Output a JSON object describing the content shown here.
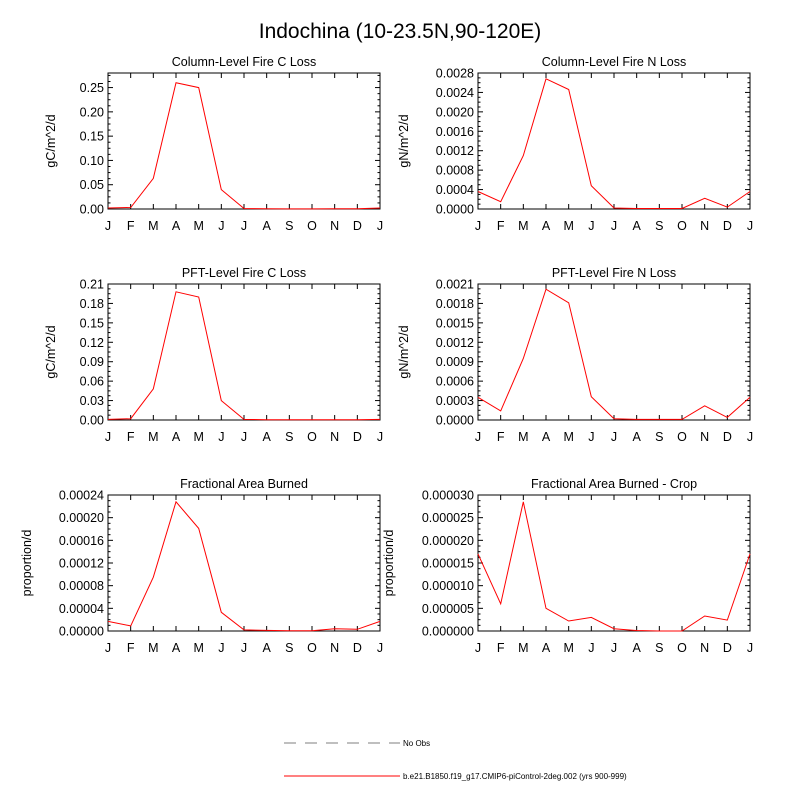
{
  "title": "Indochina (10-23.5N,90-120E)",
  "months": [
    "J",
    "F",
    "M",
    "A",
    "M",
    "J",
    "J",
    "A",
    "S",
    "O",
    "N",
    "D",
    "J"
  ],
  "chart_data": [
    {
      "type": "line",
      "title": "Column-Level Fire C Loss",
      "ylabel": "gC/m^2/d",
      "ylim": [
        0,
        0.28
      ],
      "yticks": [
        "0.00",
        "0.05",
        "0.10",
        "0.15",
        "0.20",
        "0.25"
      ],
      "ytick_values": [
        0,
        0.05,
        0.1,
        0.15,
        0.2,
        0.25
      ],
      "series": [
        {
          "values": [
            0.002,
            0.003,
            0.063,
            0.26,
            0.25,
            0.04,
            0.001,
            0.0005,
            0.0003,
            0.0003,
            0.0005,
            0.0005,
            0.002
          ]
        }
      ]
    },
    {
      "type": "line",
      "title": "Column-Level Fire N Loss",
      "ylabel": "gN/m^2/d",
      "ylim": [
        0,
        0.0028
      ],
      "yticks": [
        "0.0000",
        "0.0004",
        "0.0008",
        "0.0012",
        "0.0016",
        "0.0020",
        "0.0024",
        "0.0028"
      ],
      "ytick_values": [
        0,
        0.0004,
        0.0008,
        0.0012,
        0.0016,
        0.002,
        0.0024,
        0.0028
      ],
      "series": [
        {
          "values": [
            0.00036,
            0.00015,
            0.0011,
            0.00268,
            0.00246,
            0.00048,
            2e-05,
            1e-05,
            1e-05,
            1e-05,
            0.00022,
            4e-05,
            0.00036
          ]
        }
      ]
    },
    {
      "type": "line",
      "title": "PFT-Level Fire C Loss",
      "ylabel": "gC/m^2/d",
      "ylim": [
        0,
        0.21
      ],
      "yticks": [
        "0.00",
        "0.03",
        "0.06",
        "0.09",
        "0.12",
        "0.15",
        "0.18",
        "0.21"
      ],
      "ytick_values": [
        0,
        0.03,
        0.06,
        0.09,
        0.12,
        0.15,
        0.18,
        0.21
      ],
      "series": [
        {
          "values": [
            0.001,
            0.002,
            0.048,
            0.198,
            0.19,
            0.03,
            0.001,
            0.0005,
            0.0003,
            0.0003,
            0.0004,
            0.0004,
            0.001
          ]
        }
      ]
    },
    {
      "type": "line",
      "title": "PFT-Level Fire N Loss",
      "ylabel": "gN/m^2/d",
      "ylim": [
        0,
        0.0021
      ],
      "yticks": [
        "0.0000",
        "0.0003",
        "0.0006",
        "0.0009",
        "0.0012",
        "0.0015",
        "0.0018",
        "0.0021"
      ],
      "ytick_values": [
        0,
        0.0003,
        0.0006,
        0.0009,
        0.0012,
        0.0015,
        0.0018,
        0.0021
      ],
      "series": [
        {
          "values": [
            0.00035,
            0.00014,
            0.00095,
            0.00202,
            0.00181,
            0.00036,
            2e-05,
            1e-05,
            1e-05,
            1e-05,
            0.00022,
            4e-05,
            0.00035
          ]
        }
      ]
    },
    {
      "type": "line",
      "title": "Fractional Area Burned",
      "ylabel": "proportion/d",
      "ylim": [
        0,
        0.00024
      ],
      "yticks": [
        "0.00000",
        "0.00004",
        "0.00008",
        "0.00012",
        "0.00016",
        "0.00020",
        "0.00024"
      ],
      "ytick_values": [
        0,
        4e-05,
        8e-05,
        0.00012,
        0.00016,
        0.0002,
        0.00024
      ],
      "series": [
        {
          "values": [
            1.7e-05,
            9e-06,
            9.5e-05,
            0.000228,
            0.000181,
            3.3e-05,
            2e-06,
            1e-06,
            5e-07,
            5e-07,
            4e-06,
            3e-06,
            1.7e-05
          ]
        }
      ]
    },
    {
      "type": "line",
      "title": "Fractional Area Burned - Crop",
      "ylabel": "proportion/d",
      "ylim": [
        0,
        3e-05
      ],
      "yticks": [
        "0.000000",
        "0.000005",
        "0.000010",
        "0.000015",
        "0.000020",
        "0.000025",
        "0.000030"
      ],
      "ytick_values": [
        0,
        5e-06,
        1e-05,
        1.5e-05,
        2e-05,
        2.5e-05,
        3e-05
      ],
      "series": [
        {
          "values": [
            1.7e-05,
            6e-06,
            2.85e-05,
            5e-06,
            2.2e-06,
            3e-06,
            5e-07,
            1e-07,
            0.0,
            0.0,
            3.3e-06,
            2.4e-06,
            1.7e-05
          ]
        }
      ]
    }
  ],
  "legend": [
    {
      "label": "No Obs",
      "style": "dashed",
      "color": "#999999"
    },
    {
      "label": "b.e21.B1850.f19_g17.CMIP6-piControl-2deg.002 (yrs 900-999)",
      "style": "solid",
      "color": "#ff0000"
    }
  ],
  "colors": {
    "series": "#ff0000",
    "axis": "#000000",
    "obs": "#999999"
  }
}
